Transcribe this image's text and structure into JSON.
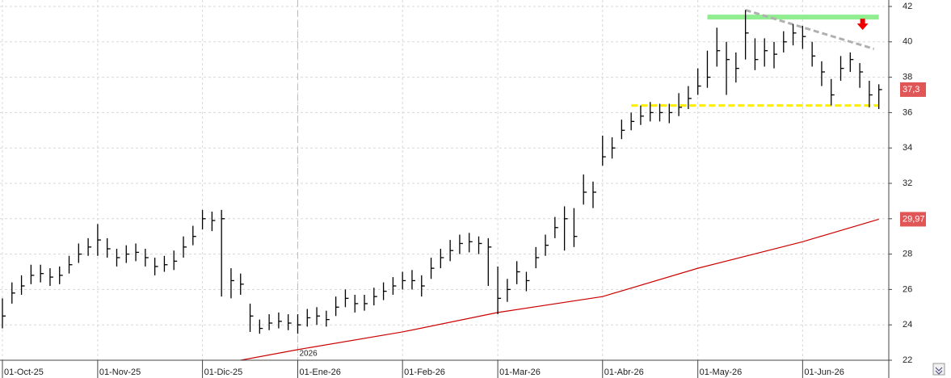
{
  "chart_data": {
    "type": "ohlc",
    "categories": [
      "01-Oct-25",
      null,
      null,
      null,
      null,
      null,
      null,
      null,
      null,
      null,
      "01-Nov-25",
      null,
      null,
      null,
      null,
      null,
      null,
      null,
      null,
      null,
      null,
      "01-Dic-25",
      null,
      null,
      null,
      null,
      null,
      null,
      null,
      null,
      null,
      "01-Ene-26",
      null,
      null,
      null,
      null,
      null,
      null,
      null,
      null,
      null,
      null,
      "01-Feb-26",
      null,
      null,
      null,
      null,
      null,
      null,
      null,
      null,
      null,
      "01-Mar-26",
      null,
      null,
      null,
      null,
      null,
      null,
      null,
      null,
      null,
      null,
      "01-Abr-26",
      null,
      null,
      null,
      null,
      null,
      null,
      null,
      null,
      null,
      "01-May-26",
      null,
      null,
      null,
      null,
      null,
      null,
      null,
      null,
      null,
      null,
      "01-Jun-26",
      null,
      null,
      null,
      null,
      null,
      null,
      null,
      null
    ],
    "high": [
      25.5,
      26.4,
      26.8,
      27.4,
      27.4,
      27.2,
      27.3,
      27.9,
      28.6,
      28.9,
      29.7,
      28.9,
      28.3,
      28.5,
      28.6,
      28.3,
      27.8,
      27.9,
      28.2,
      29.0,
      29.6,
      30.5,
      30.4,
      30.5,
      27.2,
      26.9,
      25.2,
      24.3,
      24.6,
      24.7,
      24.6,
      24.6,
      24.9,
      25.0,
      24.8,
      25.6,
      26.0,
      25.7,
      25.7,
      26.1,
      26.4,
      26.7,
      27.0,
      27.1,
      26.8,
      27.8,
      28.3,
      28.8,
      29.1,
      29.2,
      29.0,
      28.9,
      27.3,
      26.6,
      27.6,
      27.0,
      28.4,
      29.1,
      30.1,
      30.7,
      30.6,
      32.5,
      32.1,
      34.7,
      34.6,
      35.6,
      36.0,
      36.4,
      36.6,
      36.5,
      36.5,
      37.1,
      37.5,
      38.5,
      39.5,
      40.8,
      40.0,
      39.4,
      41.8,
      40.2,
      40.2,
      40.0,
      40.6,
      41.0,
      40.9,
      40.0,
      38.9,
      37.9,
      39.2,
      39.4,
      38.8,
      37.8,
      37.6
    ],
    "low": [
      23.8,
      25.2,
      25.7,
      26.3,
      26.4,
      26.2,
      26.3,
      26.9,
      27.5,
      27.9,
      27.9,
      27.8,
      27.3,
      27.5,
      27.6,
      27.3,
      26.8,
      27.0,
      27.1,
      27.8,
      28.5,
      29.4,
      29.3,
      25.6,
      25.5,
      25.7,
      23.6,
      23.5,
      23.7,
      23.8,
      23.7,
      23.5,
      23.9,
      24.0,
      23.9,
      24.5,
      25.0,
      24.7,
      24.8,
      25.1,
      25.4,
      25.7,
      26.0,
      26.0,
      25.6,
      26.6,
      27.2,
      27.6,
      28.0,
      28.1,
      28.0,
      26.2,
      24.6,
      25.3,
      26.3,
      25.9,
      27.2,
      27.9,
      28.9,
      28.2,
      28.4,
      30.8,
      30.6,
      33.0,
      33.4,
      34.5,
      35.0,
      35.3,
      35.5,
      35.5,
      35.4,
      35.8,
      36.2,
      37.0,
      37.4,
      38.6,
      37.0,
      37.7,
      39.0,
      38.4,
      38.6,
      38.5,
      39.4,
      39.8,
      39.6,
      38.6,
      37.5,
      36.4,
      37.8,
      38.3,
      37.4,
      36.3,
      36.2
    ],
    "close": [
      24.5,
      25.8,
      26.2,
      26.8,
      26.9,
      26.7,
      26.8,
      27.4,
      28.0,
      28.4,
      28.8,
      28.3,
      27.8,
      28.0,
      28.1,
      27.8,
      27.3,
      27.4,
      27.6,
      28.4,
      29.0,
      30.0,
      29.9,
      30.0,
      26.5,
      26.3,
      24.5,
      23.8,
      24.1,
      24.2,
      24.1,
      24.0,
      24.4,
      24.5,
      24.3,
      25.0,
      25.5,
      25.2,
      25.2,
      25.6,
      25.9,
      26.2,
      26.5,
      26.5,
      26.2,
      27.2,
      27.8,
      28.2,
      28.6,
      28.7,
      28.6,
      28.4,
      25.5,
      26.0,
      27.0,
      26.5,
      27.8,
      28.5,
      29.5,
      30.0,
      29.0,
      31.5,
      31.5,
      33.5,
      34.0,
      35.0,
      35.5,
      35.8,
      36.0,
      36.0,
      36.0,
      36.3,
      36.8,
      37.5,
      38.0,
      39.5,
      39.0,
      38.5,
      40.5,
      39.0,
      39.5,
      39.3,
      40.0,
      40.5,
      40.3,
      39.2,
      38.3,
      37.0,
      38.5,
      39.0,
      38.3,
      37.0,
      37.3
    ],
    "color": "#000000",
    "moving_average": {
      "x": [
        24,
        31,
        42,
        52,
        63,
        73,
        84,
        92
      ],
      "values": [
        21.9,
        22.6,
        23.6,
        24.7,
        25.6,
        27.2,
        28.7,
        29.97
      ],
      "color": "#cc0000"
    },
    "ylim": [
      22,
      42
    ],
    "yticks": [
      22,
      24,
      26,
      28,
      30,
      32,
      34,
      36,
      38,
      40,
      42
    ],
    "grid": true,
    "year_divider": {
      "x": 31,
      "label": "2026"
    },
    "levels": [
      {
        "value": 41.4,
        "from": 74,
        "to": 92,
        "color": "#90ee90",
        "style": "solid"
      },
      {
        "value": 36.4,
        "from": 66,
        "to": 92,
        "color": "#ffee00",
        "style": "dashed"
      }
    ],
    "trendline": {
      "x": [
        78,
        91.5
      ],
      "values": [
        41.8,
        39.6
      ],
      "color": "#b0b0b0"
    },
    "arrow": {
      "x": 90.3,
      "value": 40.9,
      "color": "#ee0000"
    },
    "price_tags": [
      {
        "value": 37.3,
        "label": "37,3",
        "color": "#e05555"
      },
      {
        "value": 29.97,
        "label": "29,97",
        "color": "#e05555"
      }
    ]
  }
}
